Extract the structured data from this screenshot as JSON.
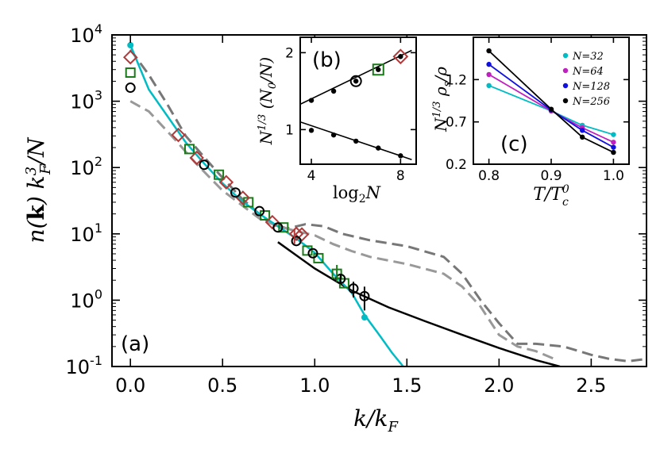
{
  "chart_data": [
    {
      "id": "a",
      "type": "scatter",
      "panel_label": "(a)",
      "xlabel": "k/k_F",
      "ylabel": "n(k) k_F^3/N",
      "xlim": [
        -0.1,
        2.8
      ],
      "ylim_log10": [
        -1,
        4
      ],
      "y_scale": "log",
      "x_ticks": [
        "0.0",
        "0.5",
        "1.0",
        "1.5",
        "2.0",
        "2.5"
      ],
      "x_tick_values": [
        0,
        0.5,
        1.0,
        1.5,
        2.0,
        2.5
      ],
      "y_ticks": [
        "10^-1",
        "10^0",
        "10^1",
        "10^2",
        "10^3",
        "10^4"
      ],
      "y_tick_exponents": [
        -1,
        0,
        1,
        2,
        3,
        4
      ],
      "cyan_curve": {
        "color": "#00bcc4",
        "x": [
          0.0,
          0.1,
          0.2,
          0.3,
          0.4,
          0.5,
          0.6,
          0.7,
          0.8,
          0.9,
          1.0,
          1.1,
          1.2,
          1.27,
          1.35,
          1.42,
          1.48
        ],
        "y": [
          7000,
          1500,
          600,
          240,
          115,
          58,
          32,
          20,
          13,
          8.5,
          5.2,
          2.5,
          1.3,
          0.6,
          0.3,
          0.16,
          0.1
        ]
      },
      "cyan_points": {
        "color": "#00bcc4",
        "x": [
          0.0,
          1.27
        ],
        "y": [
          7000,
          0.55
        ]
      },
      "black_curve": {
        "color": "#000000",
        "x": [
          0.8,
          1.0,
          1.2,
          1.4,
          1.6,
          1.8,
          2.0,
          2.2,
          2.33
        ],
        "y": [
          7.5,
          3.0,
          1.4,
          0.78,
          0.48,
          0.3,
          0.19,
          0.125,
          0.1
        ]
      },
      "gray_dashed_1": {
        "color": "#777777",
        "x": [
          0.0,
          0.1,
          0.2,
          0.3,
          0.45,
          0.6,
          0.75,
          0.85,
          0.95,
          1.05,
          1.15,
          1.3,
          1.5,
          1.7,
          1.8,
          1.9,
          2.0,
          2.1,
          2.2,
          2.35,
          2.5,
          2.6,
          2.7,
          2.8
        ],
        "y": [
          6000,
          2500,
          900,
          300,
          100,
          35,
          15,
          12,
          14,
          13,
          10,
          8,
          6.5,
          4.5,
          2.5,
          1.0,
          0.45,
          0.22,
          0.22,
          0.2,
          0.15,
          0.13,
          0.12,
          0.13
        ]
      },
      "gray_dashed_2": {
        "color": "#999999",
        "x": [
          0.0,
          0.1,
          0.25,
          0.35,
          0.5,
          0.7,
          0.8,
          0.9,
          1.0,
          1.1,
          1.2,
          1.3,
          1.5,
          1.7,
          1.8,
          1.9,
          2.0,
          2.1,
          2.2,
          2.3
        ],
        "y": [
          1000,
          700,
          250,
          120,
          45,
          17,
          13,
          11,
          9.5,
          7,
          5.5,
          4.5,
          3.5,
          2.5,
          1.6,
          0.8,
          0.3,
          0.2,
          0.17,
          0.13
        ]
      },
      "black_circles": {
        "color": "#000000",
        "x": [
          0.0,
          0.4,
          0.57,
          0.7,
          0.8,
          0.9,
          0.99,
          1.14,
          1.21,
          1.27
        ],
        "y": [
          1600,
          110,
          42,
          22,
          12.5,
          7.8,
          5.1,
          2.1,
          1.5,
          1.15
        ],
        "yerr": [
          0,
          0,
          0,
          0,
          0,
          0,
          0,
          0.3,
          0.4,
          0.45
        ]
      },
      "green_squares": {
        "color": "#1a7a1a",
        "x": [
          0.0,
          0.32,
          0.48,
          0.64,
          0.73,
          0.83,
          0.96,
          1.02,
          1.12,
          1.16
        ],
        "y": [
          2700,
          190,
          78,
          30,
          19,
          12.5,
          5.6,
          4.3,
          2.5,
          1.8
        ]
      },
      "red_diamonds": {
        "color": "#b03a3a",
        "x": [
          0.0,
          0.26,
          0.36,
          0.52,
          0.61,
          0.77,
          0.9,
          0.93
        ],
        "y": [
          4600,
          310,
          140,
          60,
          35,
          15,
          10,
          9.8
        ]
      }
    },
    {
      "id": "b",
      "type": "line",
      "panel_label": "(b)",
      "xlabel": "log2N",
      "ylabel": "N^1/3 (N0/N)",
      "xlim": [
        3.5,
        8.7
      ],
      "ylim": [
        0.55,
        2.2
      ],
      "x_ticks": [
        "4",
        "8"
      ],
      "x_tick_values": [
        4,
        8
      ],
      "y_ticks": [
        "1",
        "2"
      ],
      "y_tick_values": [
        1,
        2
      ],
      "upper_series": {
        "x": [
          4,
          5,
          6,
          7,
          8
        ],
        "y": [
          1.38,
          1.5,
          1.63,
          1.78,
          1.95
        ]
      },
      "upper_fit": {
        "x": [
          3.5,
          8.5
        ],
        "y": [
          1.33,
          2.03
        ]
      },
      "lower_series": {
        "x": [
          4,
          5,
          6,
          7,
          8
        ],
        "y": [
          0.99,
          0.93,
          0.85,
          0.76,
          0.66
        ]
      },
      "lower_fit": {
        "x": [
          3.5,
          8.5
        ],
        "y": [
          1.1,
          0.61
        ]
      },
      "markers": [
        {
          "shape": "circle",
          "color": "#000000",
          "x": 6,
          "y": 1.63
        },
        {
          "shape": "square",
          "color": "#1a7a1a",
          "x": 7,
          "y": 1.78
        },
        {
          "shape": "diamond",
          "color": "#b03a3a",
          "x": 8,
          "y": 1.95
        }
      ]
    },
    {
      "id": "c",
      "type": "line",
      "panel_label": "(c)",
      "xlabel": "T/Tc^0",
      "ylabel": "N^1/3 ρs/ρ",
      "xlim": [
        0.775,
        1.025
      ],
      "ylim": [
        0.2,
        1.7
      ],
      "x_ticks": [
        "0.8",
        "0.9",
        "1.0"
      ],
      "x_tick_values": [
        0.8,
        0.9,
        1.0
      ],
      "y_ticks": [
        "0.2",
        "0.7",
        "1.2"
      ],
      "y_tick_values": [
        0.2,
        0.7,
        1.2
      ],
      "series": [
        {
          "name": "N=32",
          "color": "#00bcc4",
          "x": [
            0.8,
            0.9,
            0.95,
            1.0
          ],
          "y": [
            1.13,
            0.83,
            0.66,
            0.55
          ]
        },
        {
          "name": "N=64",
          "color": "#c020c0",
          "x": [
            0.8,
            0.9,
            0.95,
            1.0
          ],
          "y": [
            1.26,
            0.83,
            0.63,
            0.46
          ]
        },
        {
          "name": "N=128",
          "color": "#1010e0",
          "x": [
            0.8,
            0.9,
            0.95,
            1.0
          ],
          "y": [
            1.38,
            0.84,
            0.6,
            0.4
          ]
        },
        {
          "name": "N=256",
          "color": "#000000",
          "x": [
            0.8,
            0.9,
            0.95,
            1.0
          ],
          "y": [
            1.54,
            0.85,
            0.52,
            0.34
          ]
        }
      ]
    }
  ]
}
